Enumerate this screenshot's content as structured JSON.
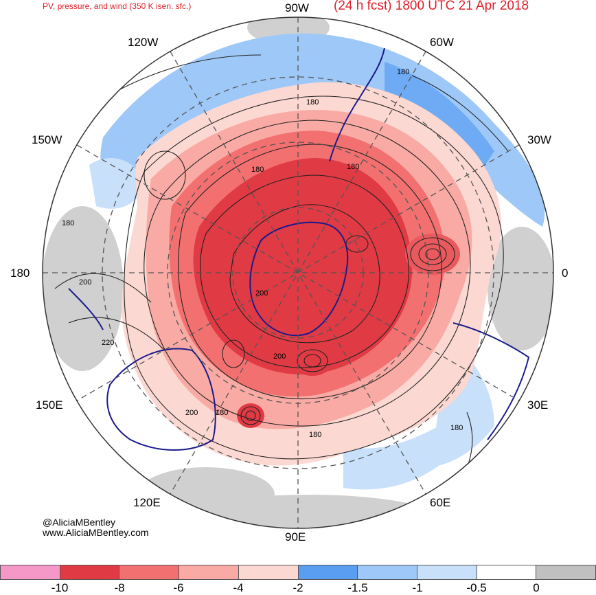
{
  "header": {
    "title_left": "PV, pressure, and wind (350 K isen. sfc.)",
    "title_right": "(24 h fcst) 1800 UTC 21 Apr 2018"
  },
  "longitudes": {
    "top": "90W",
    "upper_left": "120W",
    "upper_right": "60W",
    "left_upper": "150W",
    "right_upper": "30W",
    "left": "180",
    "right": "0",
    "left_lower": "150E",
    "right_lower": "30E",
    "lower_left": "120E",
    "lower_right": "60E",
    "bottom": "90E"
  },
  "contour_labels": [
    "180",
    "180",
    "180",
    "180",
    "180",
    "200",
    "200",
    "220",
    "200",
    "180",
    "200",
    "180",
    "180"
  ],
  "credits": {
    "handle": "@AliciaMBentley",
    "website": "www.AliciaMBentley.com"
  },
  "colorbar": {
    "colors": [
      "#f598c8",
      "#e03a44",
      "#f27070",
      "#f9aaa4",
      "#fcd8d2",
      "#5a9ef2",
      "#9dc8f7",
      "#c8e0f9",
      "#ffffff",
      "#c0c0c0"
    ],
    "ticks": [
      "-10",
      "-8",
      "-6",
      "-4",
      "-2",
      "-1.5",
      "-1",
      "-0.5",
      "0"
    ]
  }
}
